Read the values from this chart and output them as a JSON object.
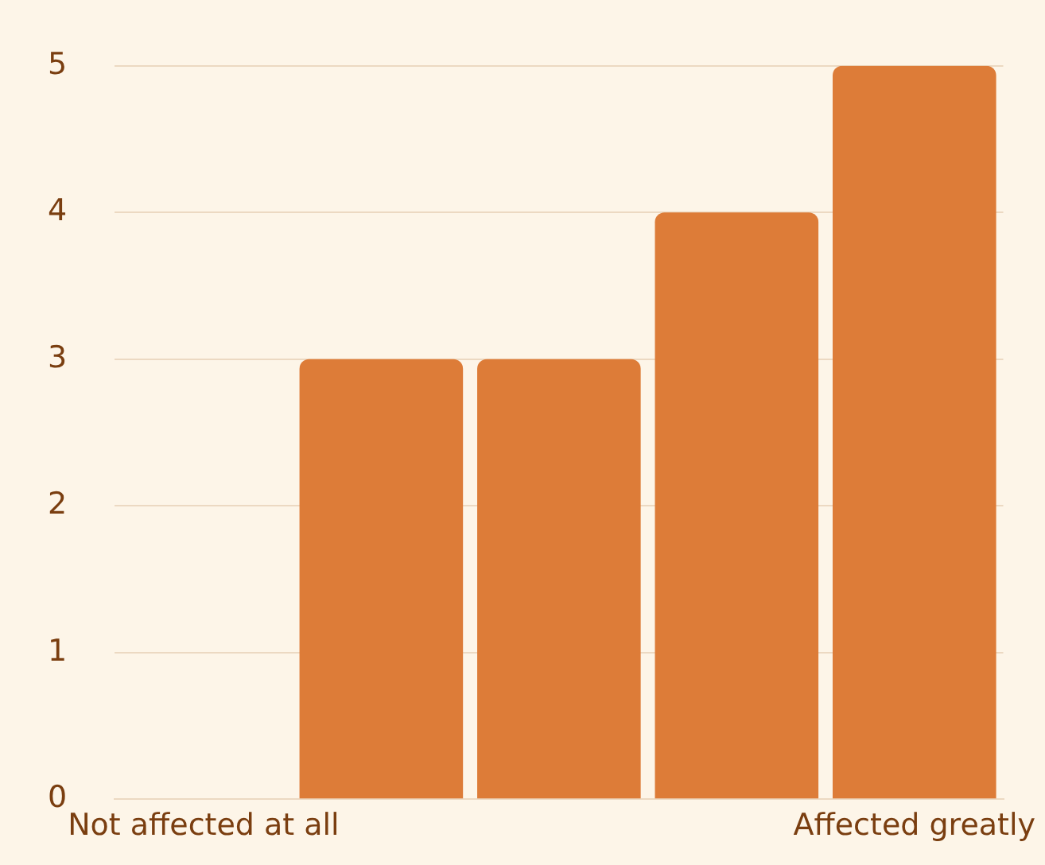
{
  "chart_data": {
    "type": "bar",
    "categories": [
      "Not affected at all",
      null,
      null,
      null,
      "Affected greatly"
    ],
    "values": [
      0,
      3,
      3,
      4,
      5
    ],
    "color": "#dd7c38",
    "ylim": [
      0,
      5
    ],
    "yticks": [
      0,
      1,
      2,
      3,
      4,
      5
    ],
    "grid": "y",
    "legend": false
  }
}
